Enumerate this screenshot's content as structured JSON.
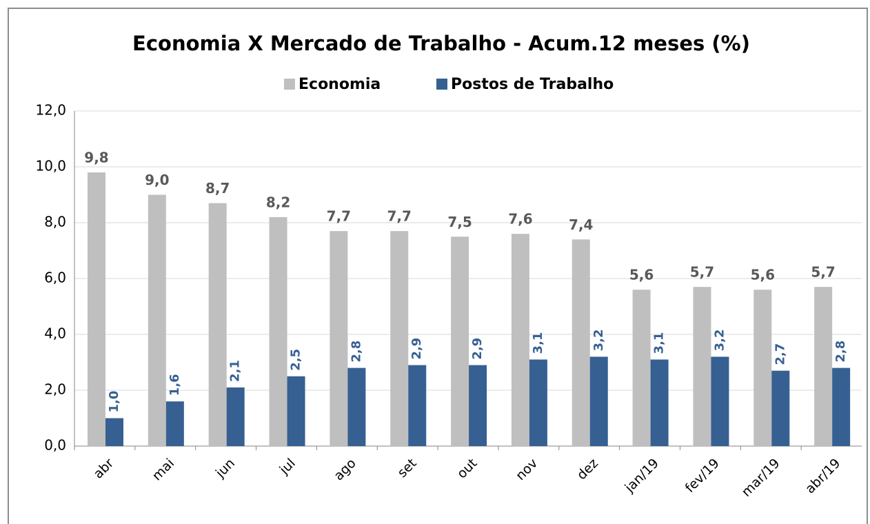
{
  "chart_data": {
    "type": "bar",
    "title": "Economia X Mercado de Trabalho - Acum.12 meses (%)",
    "categories": [
      "abr",
      "mai",
      "jun",
      "jul",
      "ago",
      "set",
      "out",
      "nov",
      "dez",
      "jan/19",
      "fev/19",
      "mar/19",
      "abr/19"
    ],
    "series": [
      {
        "name": "Economia",
        "color": "#bfbfbf",
        "values": [
          9.8,
          9.0,
          8.7,
          8.2,
          7.7,
          7.7,
          7.5,
          7.6,
          7.4,
          5.6,
          5.7,
          5.6,
          5.7
        ],
        "value_labels": [
          "9,8",
          "9,0",
          "8,7",
          "8,2",
          "7,7",
          "7,7",
          "7,5",
          "7,6",
          "7,4",
          "5,6",
          "5,7",
          "5,6",
          "5,7"
        ]
      },
      {
        "name": "Postos de Trabalho",
        "color": "#376092",
        "values": [
          1.0,
          1.6,
          2.1,
          2.5,
          2.8,
          2.9,
          2.9,
          3.1,
          3.2,
          3.1,
          3.2,
          2.7,
          2.8
        ],
        "value_labels": [
          "1,0",
          "1,6",
          "2,1",
          "2,5",
          "2,8",
          "2,9",
          "2,9",
          "3,1",
          "3,2",
          "3,1",
          "3,2",
          "2,7",
          "2,8"
        ]
      }
    ],
    "ylim": [
      0,
      12
    ],
    "yticks": [
      {
        "value": 0,
        "label": "0,0"
      },
      {
        "value": 2,
        "label": "2,0"
      },
      {
        "value": 4,
        "label": "4,0"
      },
      {
        "value": 6,
        "label": "6,0"
      },
      {
        "value": 8,
        "label": "8,0"
      },
      {
        "value": 10,
        "label": "10,0"
      },
      {
        "value": 12,
        "label": "12,0"
      }
    ],
    "grid": true,
    "legend": "top"
  }
}
